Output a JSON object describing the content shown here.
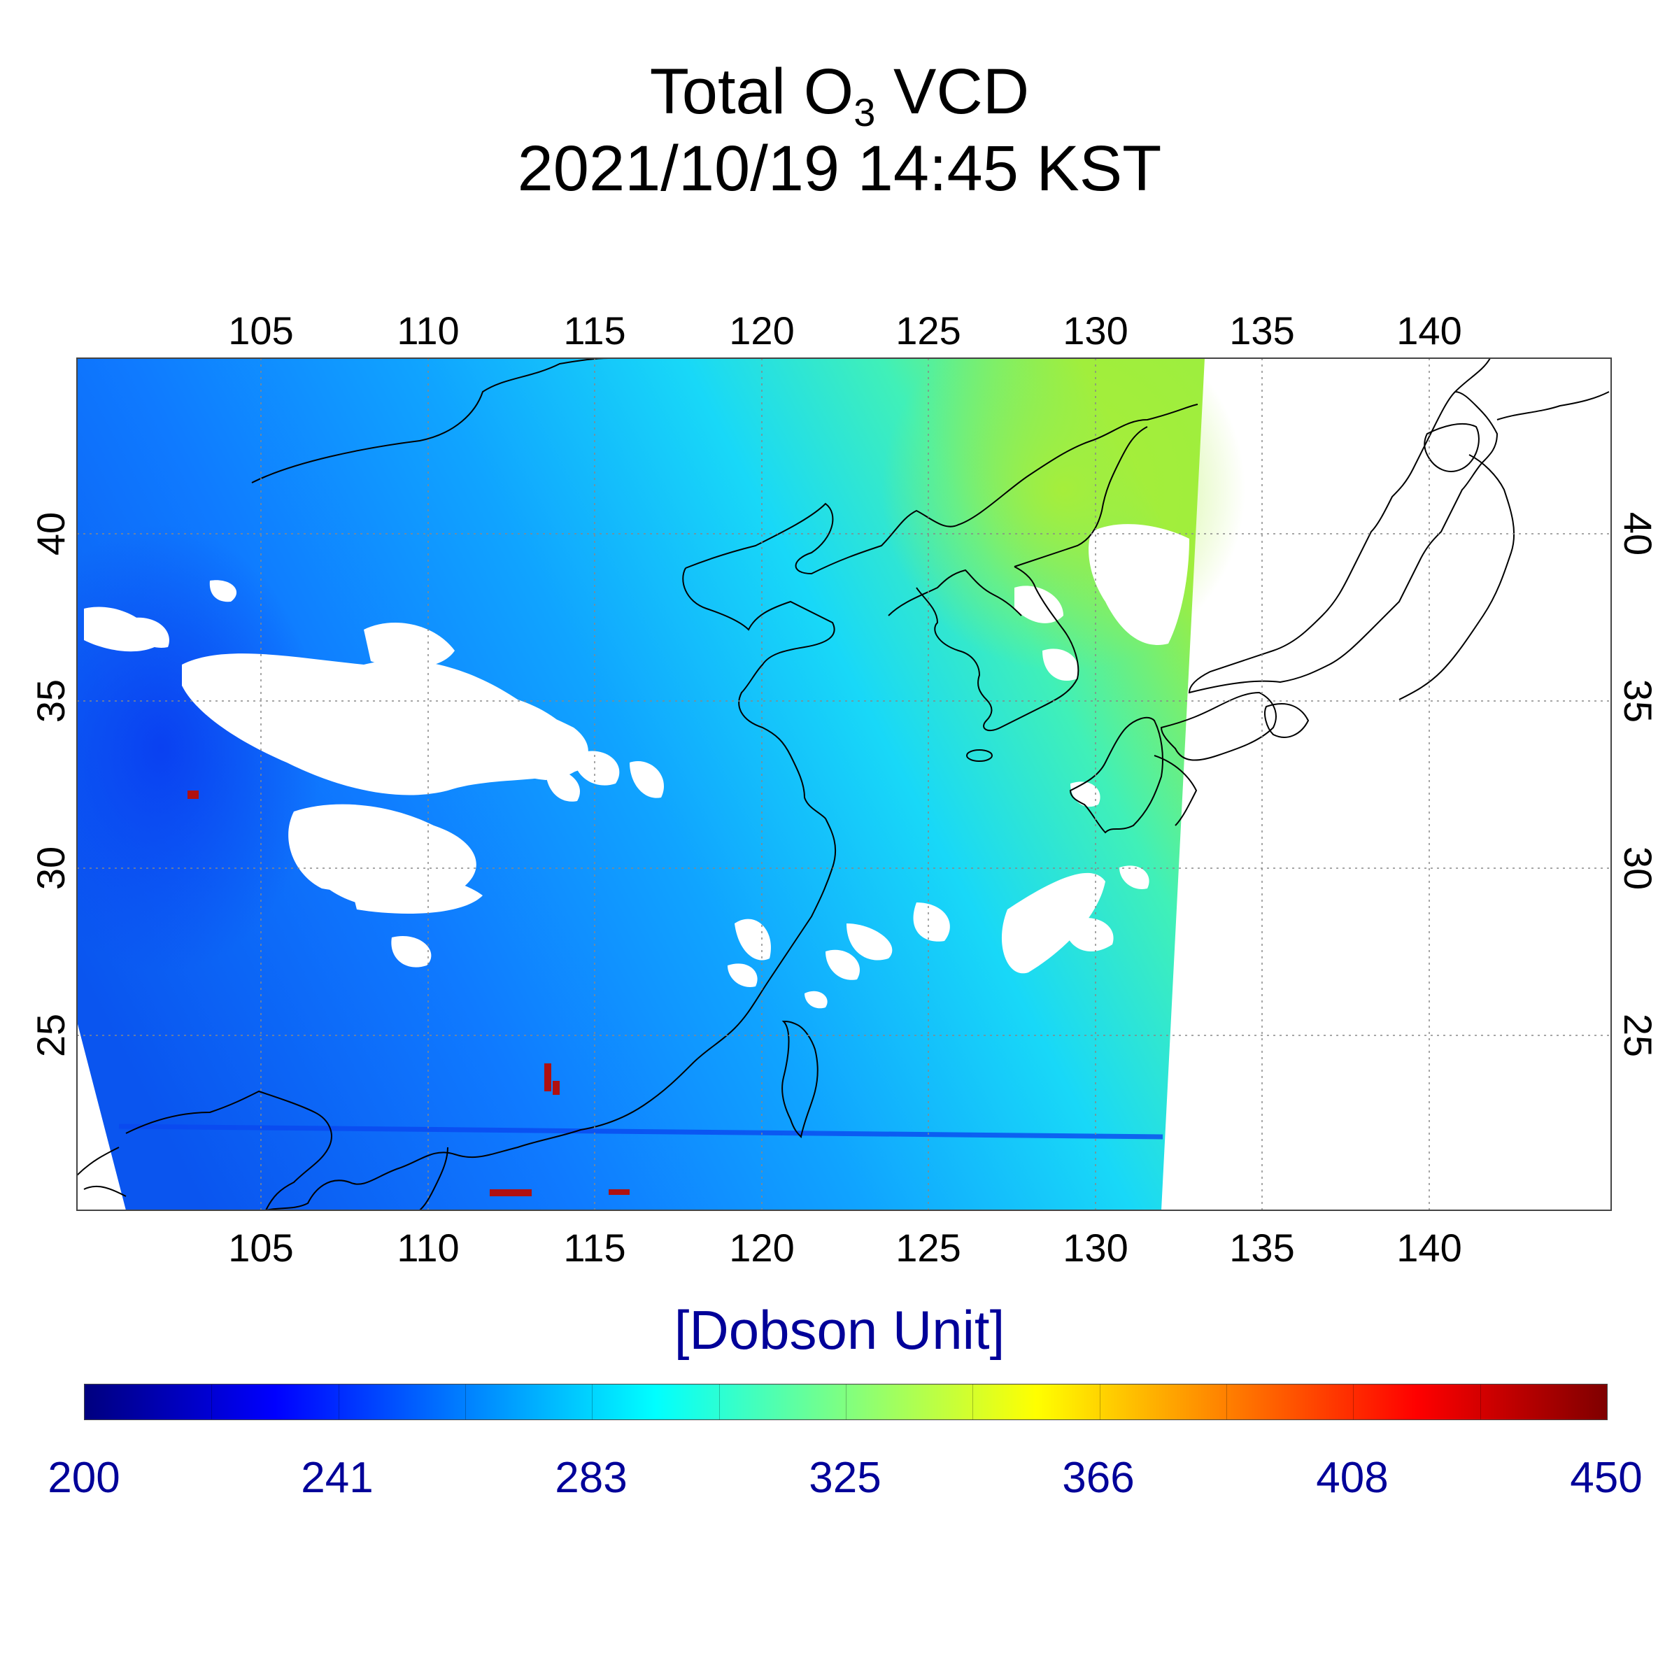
{
  "title": {
    "main": "Total O",
    "subscript": "3",
    "main_suffix": " VCD",
    "datetime": "2021/10/19 14:45 KST"
  },
  "colorbar": {
    "unit_label": "[Dobson Unit]",
    "range": [
      200,
      450
    ],
    "ticks": [
      "200",
      "241",
      "283",
      "325",
      "366",
      "408",
      "450"
    ],
    "colors": [
      "#00007f",
      "#0000ff",
      "#0080ff",
      "#00ffff",
      "#80ff80",
      "#ffff00",
      "#ff8000",
      "#ff0000",
      "#7f0000"
    ]
  },
  "map": {
    "lon_range": [
      99.5,
      145.5
    ],
    "lat_range": [
      20,
      45.5
    ],
    "lon_ticks": [
      105,
      110,
      115,
      120,
      125,
      130,
      135,
      140
    ],
    "lat_ticks": [
      25,
      30,
      35,
      40
    ],
    "grid": true,
    "colors": {
      "low": "#1266e8",
      "mid": "#11a8ff",
      "cyan": "#22f0f0",
      "high": "#66f07a",
      "peak": "#9eee3e",
      "cloud": "#ffffff",
      "coast": "#000000"
    }
  }
}
